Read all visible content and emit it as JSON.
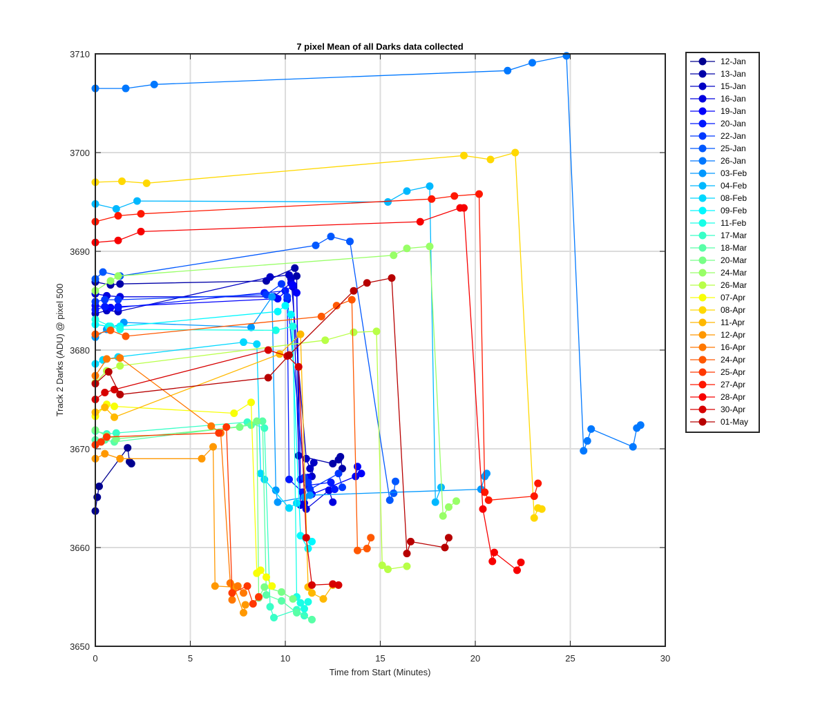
{
  "chart_data": {
    "type": "line",
    "title": "7 pixel Mean of all Darks data collected",
    "xlabel": "Time from Start (Minutes)",
    "ylabel": "Track 2 Darks (ADU) @ pixel 500",
    "xlim": [
      0,
      30
    ],
    "ylim": [
      3650,
      3710
    ],
    "x_ticks": [
      "0",
      "5",
      "10",
      "15",
      "20",
      "25",
      "30"
    ],
    "y_ticks": [
      "3650",
      "3660",
      "3670",
      "3680",
      "3690",
      "3700",
      "3710"
    ],
    "grid": true,
    "legend_position": "outside-right",
    "marker": "circle",
    "series": [
      {
        "name": "12-Jan",
        "color": "#00008f",
        "x": [
          0.0,
          0.1,
          0.2,
          1.7,
          1.8,
          1.9
        ],
        "y": [
          3663.7,
          3665.1,
          3666.2,
          3670.1,
          3668.7,
          3668.5
        ]
      },
      {
        "name": "13-Jan",
        "color": "#0000a8",
        "x": [
          0.0,
          0.8,
          1.3,
          9.0,
          10.5,
          10.6,
          10.7,
          12.5,
          12.8,
          12.9,
          13.0
        ],
        "y": [
          3686.9,
          3686.6,
          3686.7,
          3687.0,
          3688.3,
          3687.5,
          3669.3,
          3668.5,
          3668.9,
          3669.2,
          3668.0
        ]
      },
      {
        "name": "15-Jan",
        "color": "#0000c4",
        "x": [
          0.0,
          0.6,
          1.2,
          9.2,
          10.2,
          10.3,
          11.1,
          11.3,
          11.4,
          11.5
        ],
        "y": [
          3683.7,
          3684.0,
          3683.9,
          3687.4,
          3687.6,
          3687.2,
          3669.0,
          3668.0,
          3667.2,
          3668.6
        ]
      },
      {
        "name": "16-Jan",
        "color": "#0000df",
        "x": [
          0.0,
          0.6,
          1.3,
          9.4,
          10.3,
          10.4,
          10.8,
          11.0,
          11.1,
          12.3,
          12.5
        ],
        "y": [
          3685.7,
          3685.5,
          3685.4,
          3685.4,
          3686.8,
          3686.4,
          3664.3,
          3664.5,
          3663.9,
          3665.8,
          3664.6
        ]
      },
      {
        "name": "19-Jan",
        "color": "#0000fb",
        "x": [
          0.0,
          0.8,
          1.2,
          9.6,
          10.4,
          10.6,
          10.8,
          11.2,
          11.4,
          13.7,
          13.8,
          14.0
        ],
        "y": [
          3684.5,
          3684.3,
          3684.4,
          3685.2,
          3686.6,
          3685.8,
          3666.9,
          3667.1,
          3665.4,
          3667.2,
          3668.2,
          3667.5
        ]
      },
      {
        "name": "20-Jan",
        "color": "#0018ff",
        "x": [
          0.0,
          0.5,
          1.2,
          8.9,
          10.0,
          10.1,
          10.2,
          10.9,
          11.2,
          12.4,
          12.6
        ],
        "y": [
          3684.1,
          3684.4,
          3684.3,
          3685.8,
          3686.0,
          3685.1,
          3666.9,
          3665.6,
          3666.3,
          3666.6,
          3665.9
        ]
      },
      {
        "name": "22-Jan",
        "color": "#0038ff",
        "x": [
          0.0,
          0.5,
          1.2,
          9.0,
          9.8,
          10.1,
          11.0,
          11.2,
          11.3,
          12.8,
          13.0
        ],
        "y": [
          3684.9,
          3685.1,
          3685.1,
          3685.6,
          3686.7,
          3685.4,
          3667.1,
          3666.6,
          3665.9,
          3667.5,
          3666.1
        ]
      },
      {
        "name": "25-Jan",
        "color": "#0058ff",
        "x": [
          0.0,
          0.4,
          1.3,
          11.6,
          12.4,
          13.4,
          15.5,
          15.7,
          15.8
        ],
        "y": [
          3687.2,
          3687.9,
          3687.5,
          3690.6,
          3691.5,
          3691.0,
          3664.8,
          3665.5,
          3666.7
        ]
      },
      {
        "name": "26-Jan",
        "color": "#0078ff",
        "x": [
          0.0,
          1.6,
          3.1,
          21.7,
          23.0,
          24.8,
          25.7,
          25.9,
          26.1,
          28.3,
          28.5,
          28.7
        ],
        "y": [
          3706.5,
          3706.5,
          3706.9,
          3708.3,
          3709.1,
          3709.8,
          3669.8,
          3670.8,
          3672.0,
          3670.2,
          3672.1,
          3672.4
        ]
      },
      {
        "name": "03-Feb",
        "color": "#0098ff",
        "x": [
          0.0,
          0.6,
          1.5,
          8.2,
          9.3,
          9.5,
          9.6,
          11.0,
          11.3,
          20.3,
          20.5,
          20.6
        ],
        "y": [
          3681.3,
          3682.1,
          3682.8,
          3682.3,
          3685.4,
          3665.8,
          3664.6,
          3665.1,
          3665.3,
          3665.9,
          3667.2,
          3667.5
        ]
      },
      {
        "name": "04-Feb",
        "color": "#00b8ff",
        "x": [
          0.0,
          1.1,
          2.2,
          15.4,
          16.4,
          17.6,
          17.9,
          18.2
        ],
        "y": [
          3694.8,
          3694.3,
          3695.1,
          3695.0,
          3696.1,
          3696.6,
          3664.6,
          3666.1
        ]
      },
      {
        "name": "08-Feb",
        "color": "#00d8ff",
        "x": [
          0.0,
          0.4,
          1.2,
          7.8,
          8.5,
          8.7,
          8.9,
          10.2,
          10.6
        ],
        "y": [
          3678.6,
          3679.0,
          3679.3,
          3680.8,
          3680.6,
          3667.5,
          3666.9,
          3664.0,
          3664.5
        ]
      },
      {
        "name": "09-Feb",
        "color": "#00f8ff",
        "x": [
          0.0,
          0.7,
          1.3,
          9.6,
          10.0,
          10.3,
          10.8,
          11.2,
          11.4
        ],
        "y": [
          3682.6,
          3682.4,
          3682.4,
          3683.9,
          3684.5,
          3683.6,
          3661.2,
          3659.9,
          3660.6
        ]
      },
      {
        "name": "11-Feb",
        "color": "#18ffe7",
        "x": [
          0.0,
          0.8,
          1.3,
          9.5,
          10.4,
          10.6,
          10.8,
          11.0,
          11.2
        ],
        "y": [
          3683.1,
          3682.4,
          3682.1,
          3682.0,
          3682.4,
          3655.0,
          3654.4,
          3653.8,
          3654.5
        ]
      },
      {
        "name": "17-Mar",
        "color": "#38ffc7",
        "x": [
          0.0,
          0.6,
          1.1,
          8.0,
          8.9,
          9.2,
          9.4,
          10.6,
          11.0
        ],
        "y": [
          3671.8,
          3671.5,
          3671.6,
          3672.7,
          3672.1,
          3654.0,
          3652.9,
          3653.7,
          3653.1
        ]
      },
      {
        "name": "18-Mar",
        "color": "#58ffa7",
        "x": [
          0.0,
          0.5,
          1.0,
          8.2,
          8.8,
          9.0,
          9.8,
          10.6,
          11.4
        ],
        "y": [
          3670.9,
          3670.9,
          3670.7,
          3672.4,
          3672.8,
          3655.2,
          3654.6,
          3653.4,
          3652.7
        ]
      },
      {
        "name": "20-Mar",
        "color": "#78ff87",
        "x": [
          0.0,
          0.6,
          1.1,
          7.6,
          8.5,
          8.6,
          8.9,
          9.8,
          10.4
        ],
        "y": [
          3671.9,
          3671.3,
          3671.0,
          3672.2,
          3672.8,
          3654.9,
          3656.0,
          3655.5,
          3654.8
        ]
      },
      {
        "name": "24-Mar",
        "color": "#98ff67",
        "x": [
          0.0,
          0.8,
          1.2,
          15.7,
          16.4,
          17.6,
          18.3,
          18.6,
          19.0
        ],
        "y": [
          3686.0,
          3687.0,
          3687.5,
          3689.6,
          3690.3,
          3690.5,
          3663.2,
          3664.1,
          3664.7
        ]
      },
      {
        "name": "26-Mar",
        "color": "#b8ff47",
        "x": [
          0.0,
          0.6,
          1.3,
          12.1,
          13.6,
          14.8,
          15.1,
          15.4,
          16.4
        ],
        "y": [
          3676.7,
          3677.9,
          3678.4,
          3681.0,
          3681.8,
          3681.9,
          3658.2,
          3657.8,
          3658.1
        ]
      },
      {
        "name": "07-Apr",
        "color": "#f8ff07",
        "x": [
          0.0,
          0.6,
          1.0,
          7.3,
          8.2,
          8.5,
          8.7,
          9.0,
          9.3
        ],
        "y": [
          3673.3,
          3674.5,
          3674.3,
          3673.6,
          3674.7,
          3657.4,
          3657.7,
          3657.0,
          3656.1
        ]
      },
      {
        "name": "08-Apr",
        "color": "#ffd800",
        "x": [
          0.0,
          1.4,
          2.7,
          19.4,
          20.8,
          22.1,
          23.1,
          23.3,
          23.5
        ],
        "y": [
          3697.0,
          3697.1,
          3696.9,
          3699.7,
          3699.3,
          3700.0,
          3663.0,
          3664.0,
          3663.9
        ]
      },
      {
        "name": "11-Apr",
        "color": "#ffb800",
        "x": [
          0.0,
          0.5,
          1.0,
          9.7,
          10.8,
          11.2,
          11.4,
          12.0,
          12.5
        ],
        "y": [
          3673.7,
          3674.2,
          3673.2,
          3679.6,
          3681.6,
          3656.0,
          3655.4,
          3654.8,
          3656.2
        ]
      },
      {
        "name": "12-Apr",
        "color": "#ff9800",
        "x": [
          0.0,
          0.5,
          1.3,
          5.6,
          6.2,
          6.3,
          7.3,
          7.8,
          7.9
        ],
        "y": [
          3669.0,
          3669.5,
          3669.0,
          3669.0,
          3670.2,
          3656.1,
          3656.0,
          3653.4,
          3654.2
        ]
      },
      {
        "name": "16-Apr",
        "color": "#ff7800",
        "x": [
          0.0,
          0.6,
          1.3,
          6.1,
          6.6,
          7.1,
          7.2,
          7.5,
          7.8
        ],
        "y": [
          3677.4,
          3679.1,
          3679.2,
          3672.3,
          3671.6,
          3656.4,
          3654.7,
          3656.1,
          3655.4
        ]
      },
      {
        "name": "24-Apr",
        "color": "#ff5800",
        "x": [
          0.0,
          0.8,
          1.6,
          11.9,
          12.7,
          13.5,
          13.8,
          14.3,
          14.5
        ],
        "y": [
          3681.6,
          3682.0,
          3681.4,
          3683.4,
          3684.5,
          3685.1,
          3659.7,
          3659.9,
          3661.0
        ]
      },
      {
        "name": "25-Apr",
        "color": "#ff3800",
        "x": [
          0.0,
          0.3,
          0.6,
          6.5,
          6.9,
          7.2,
          8.0,
          8.3,
          8.6
        ],
        "y": [
          3670.4,
          3670.7,
          3671.2,
          3671.6,
          3672.2,
          3655.4,
          3656.1,
          3654.3,
          3655.0
        ]
      },
      {
        "name": "27-Apr",
        "color": "#ff1800",
        "x": [
          0.0,
          1.2,
          2.4,
          17.7,
          18.9,
          20.2,
          20.5,
          20.7,
          23.1,
          23.3
        ],
        "y": [
          3693.0,
          3693.6,
          3693.8,
          3695.3,
          3695.6,
          3695.8,
          3665.6,
          3664.8,
          3665.2,
          3666.5
        ]
      },
      {
        "name": "28-Apr",
        "color": "#f70000",
        "x": [
          0.0,
          1.2,
          2.4,
          17.1,
          19.2,
          19.4,
          20.4,
          20.9,
          21.0,
          22.2,
          22.4
        ],
        "y": [
          3690.9,
          3691.1,
          3692.0,
          3693.0,
          3694.4,
          3694.4,
          3663.9,
          3658.6,
          3659.5,
          3657.7,
          3658.5
        ]
      },
      {
        "name": "30-Apr",
        "color": "#d70000",
        "x": [
          0.0,
          0.5,
          1.0,
          9.1,
          10.1,
          10.7,
          11.1,
          11.4,
          12.5,
          12.8
        ],
        "y": [
          3675.0,
          3675.7,
          3676.0,
          3680.0,
          3679.4,
          3678.3,
          3661.0,
          3656.2,
          3656.3,
          3656.2
        ]
      },
      {
        "name": "01-May",
        "color": "#b70000",
        "x": [
          0.0,
          0.7,
          1.3,
          9.1,
          10.2,
          13.6,
          14.3,
          15.6,
          16.4,
          16.6,
          18.4,
          18.6
        ],
        "y": [
          3676.6,
          3677.8,
          3675.5,
          3677.2,
          3679.5,
          3686.0,
          3686.8,
          3687.3,
          3659.4,
          3660.6,
          3660.0,
          3661.0
        ]
      }
    ]
  }
}
